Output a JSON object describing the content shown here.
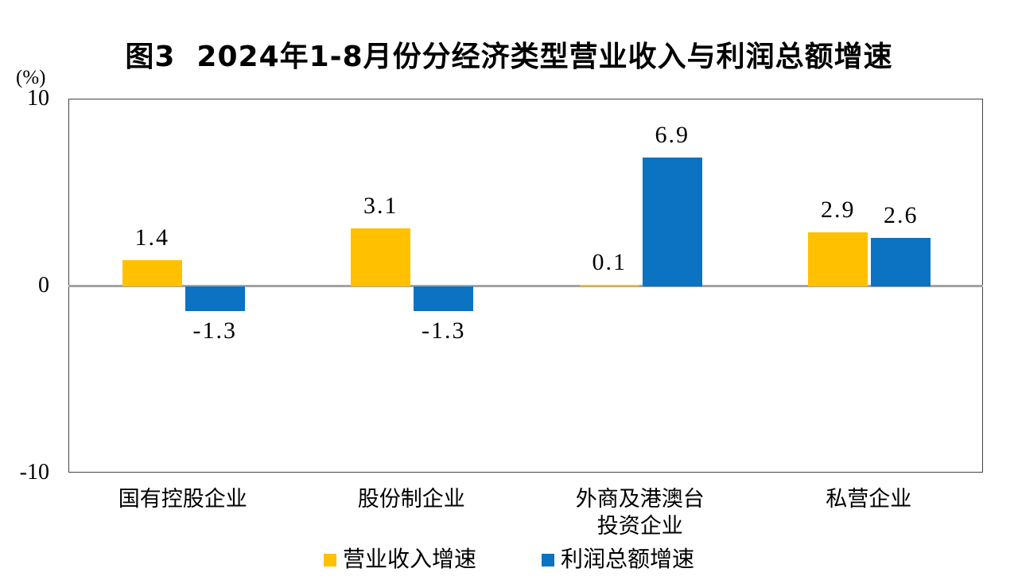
{
  "chart_data": {
    "type": "bar",
    "title": "图3  2024年1-8月份分经济类型营业收入与利润总额增速",
    "unit_label": "(%)",
    "categories": [
      "国有控股企业",
      "股份制企业",
      "外商及港澳台\n投资企业",
      "私营企业"
    ],
    "series": [
      {
        "name": "营业收入增速",
        "color": "#FFC000",
        "values": [
          1.4,
          3.1,
          0.1,
          2.9
        ]
      },
      {
        "name": "利润总额增速",
        "color": "#0C72C2",
        "values": [
          -1.3,
          -1.3,
          6.9,
          2.6
        ]
      }
    ],
    "ylim": [
      -10,
      10
    ],
    "yticks": [
      10,
      0,
      -10
    ],
    "grid": "zero-line-only",
    "legend_position": "bottom",
    "value_label_decimals": 1
  }
}
